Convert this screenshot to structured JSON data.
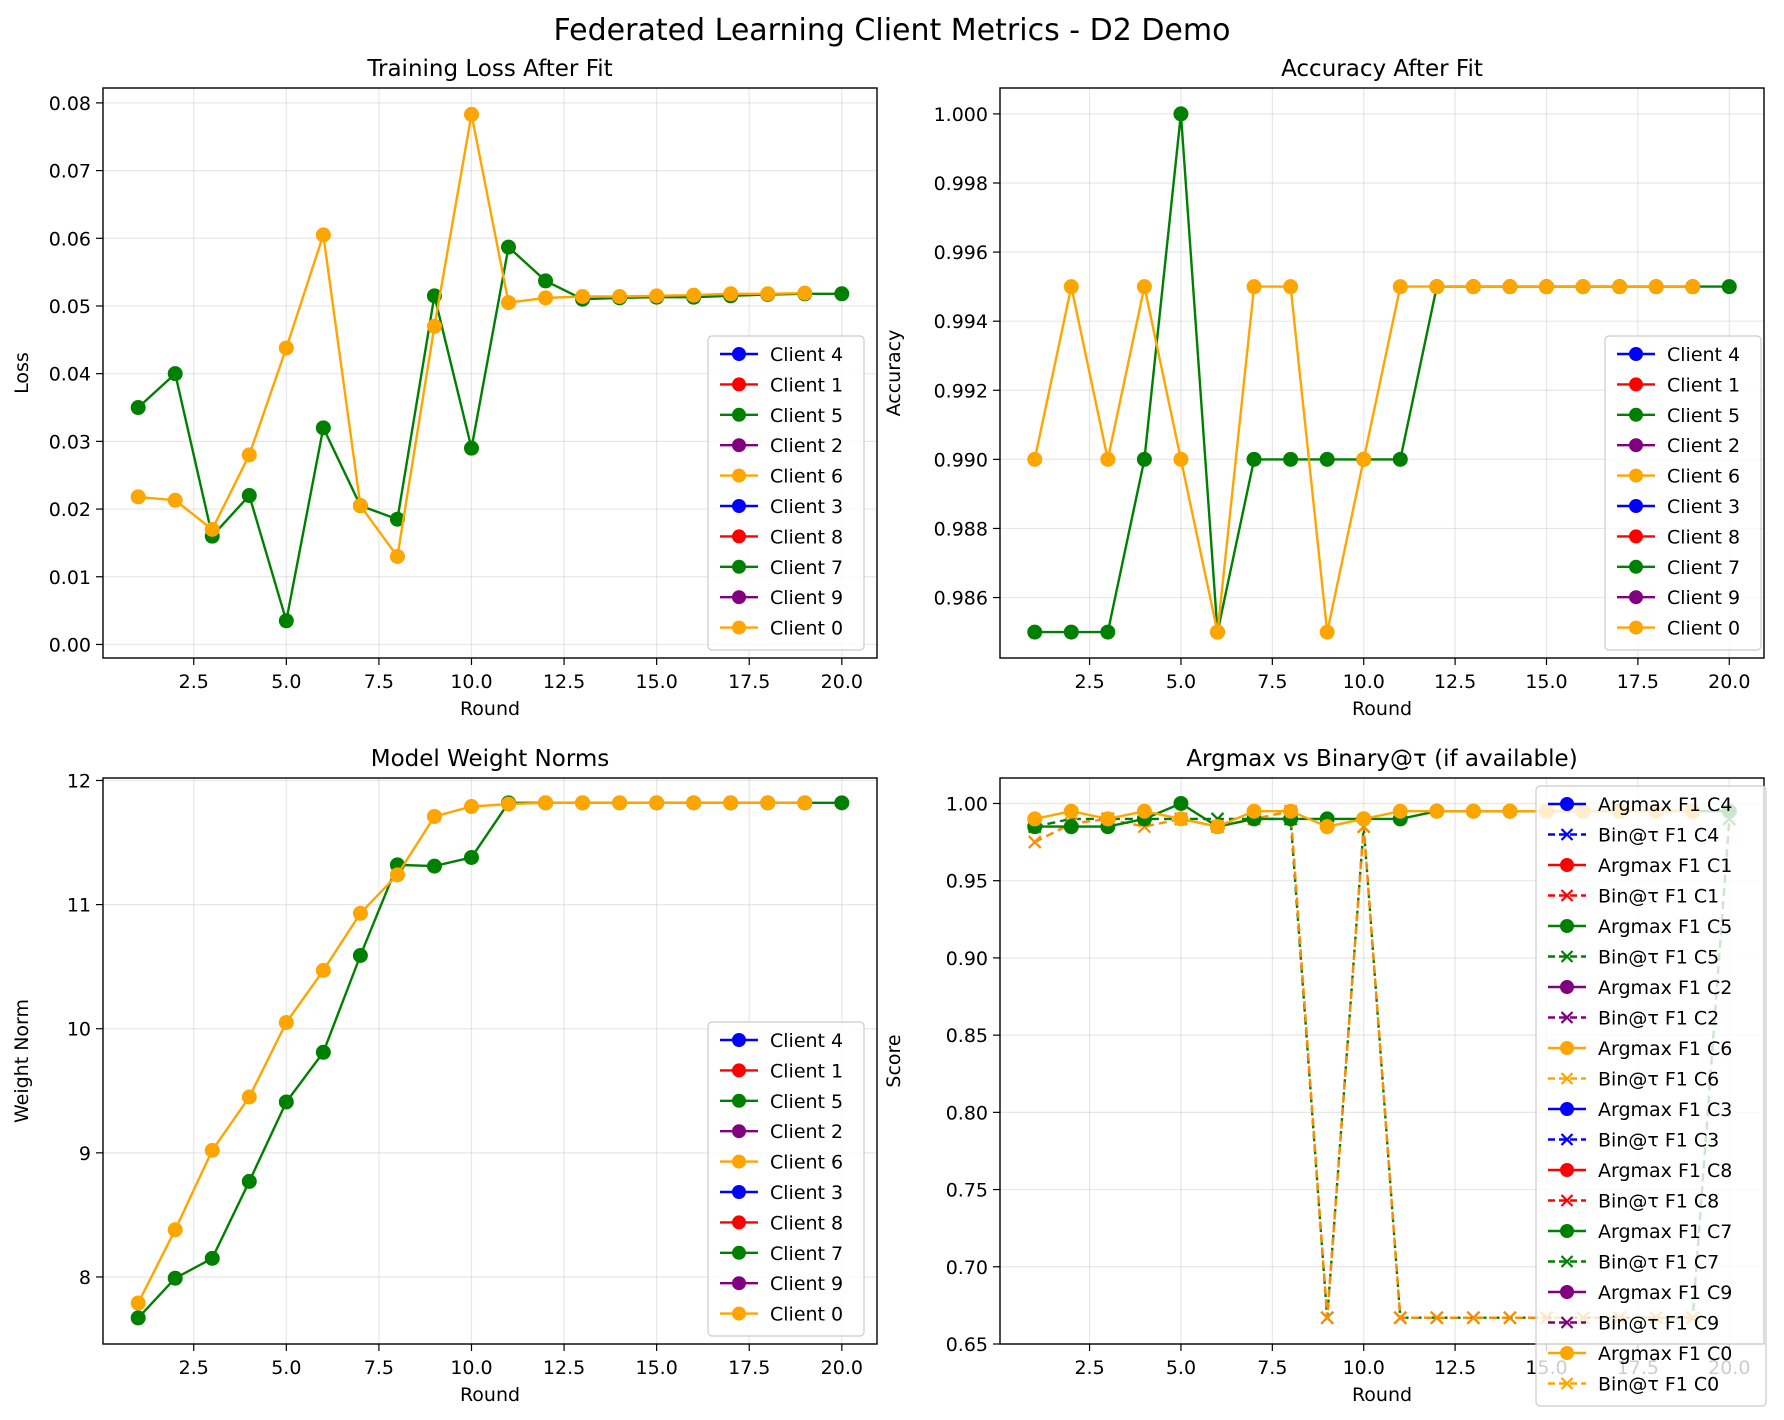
{
  "figure": {
    "title": "Federated Learning Client Metrics - D2 Demo"
  },
  "chart_data": [
    {
      "id": "loss",
      "type": "line",
      "title": "Training Loss After Fit",
      "xlabel": "Round",
      "ylabel": "Loss",
      "xlim": [
        0.05,
        20.95
      ],
      "ylim": [
        -0.002,
        0.0822
      ],
      "xticks": [
        "2.5",
        "5.0",
        "7.5",
        "10.0",
        "12.5",
        "15.0",
        "17.5",
        "20.0"
      ],
      "yticks": [
        "0.00",
        "0.01",
        "0.02",
        "0.03",
        "0.04",
        "0.05",
        "0.06",
        "0.07",
        "0.08"
      ],
      "grid": true,
      "legend_position": "center-right",
      "legend": [
        {
          "label": "Client 4",
          "color": "#0000ff",
          "marker": "o"
        },
        {
          "label": "Client 1",
          "color": "#ff0000",
          "marker": "o"
        },
        {
          "label": "Client 5",
          "color": "#008000",
          "marker": "o"
        },
        {
          "label": "Client 2",
          "color": "#800080",
          "marker": "o"
        },
        {
          "label": "Client 6",
          "color": "#ffa500",
          "marker": "o"
        },
        {
          "label": "Client 3",
          "color": "#0000ff",
          "marker": "o"
        },
        {
          "label": "Client 8",
          "color": "#ff0000",
          "marker": "o"
        },
        {
          "label": "Client 7",
          "color": "#008000",
          "marker": "o"
        },
        {
          "label": "Client 9",
          "color": "#800080",
          "marker": "o"
        },
        {
          "label": "Client 0",
          "color": "#ffa500",
          "marker": "o"
        }
      ],
      "series": [
        {
          "name": "Client 5",
          "color": "#008000",
          "marker": "o",
          "dash": "solid",
          "x": [
            1,
            2,
            3,
            4,
            5,
            6,
            7,
            8,
            9,
            10,
            11,
            12,
            13,
            14,
            15,
            16,
            17,
            18,
            19,
            20
          ],
          "y": [
            0.035,
            0.04,
            0.016,
            0.022,
            0.0035,
            0.032,
            0.0205,
            0.0185,
            0.0515,
            0.029,
            0.0587,
            0.0537,
            0.051,
            0.0512,
            0.0513,
            0.0513,
            0.0515,
            0.0517,
            0.0518,
            0.0518
          ]
        },
        {
          "name": "Client 6",
          "color": "#ffa500",
          "marker": "o",
          "dash": "solid",
          "x": [
            1,
            2,
            3,
            4,
            5,
            6,
            7,
            8,
            9,
            10,
            11,
            12,
            13,
            14,
            15,
            16,
            17,
            18,
            19
          ],
          "y": [
            0.0218,
            0.0213,
            0.017,
            0.028,
            0.0438,
            0.0605,
            0.0205,
            0.013,
            0.047,
            0.0783,
            0.0505,
            0.0512,
            0.0514,
            0.0514,
            0.0515,
            0.0516,
            0.0518,
            0.0518,
            0.0519
          ]
        }
      ]
    },
    {
      "id": "acc",
      "type": "line",
      "title": "Accuracy After Fit",
      "xlabel": "Round",
      "ylabel": "Accuracy",
      "xlim": [
        0.05,
        20.95
      ],
      "ylim": [
        0.98425,
        1.00075
      ],
      "xticks": [
        "2.5",
        "5.0",
        "7.5",
        "10.0",
        "12.5",
        "15.0",
        "17.5",
        "20.0"
      ],
      "yticks": [
        "0.986",
        "0.988",
        "0.990",
        "0.992",
        "0.994",
        "0.996",
        "0.998",
        "1.000"
      ],
      "grid": true,
      "legend_position": "center-right",
      "legend": [
        {
          "label": "Client 4",
          "color": "#0000ff",
          "marker": "o"
        },
        {
          "label": "Client 1",
          "color": "#ff0000",
          "marker": "o"
        },
        {
          "label": "Client 5",
          "color": "#008000",
          "marker": "o"
        },
        {
          "label": "Client 2",
          "color": "#800080",
          "marker": "o"
        },
        {
          "label": "Client 6",
          "color": "#ffa500",
          "marker": "o"
        },
        {
          "label": "Client 3",
          "color": "#0000ff",
          "marker": "o"
        },
        {
          "label": "Client 8",
          "color": "#ff0000",
          "marker": "o"
        },
        {
          "label": "Client 7",
          "color": "#008000",
          "marker": "o"
        },
        {
          "label": "Client 9",
          "color": "#800080",
          "marker": "o"
        },
        {
          "label": "Client 0",
          "color": "#ffa500",
          "marker": "o"
        }
      ],
      "series": [
        {
          "name": "Client 5",
          "color": "#008000",
          "marker": "o",
          "dash": "solid",
          "x": [
            1,
            2,
            3,
            4,
            5,
            6,
            7,
            8,
            9,
            10,
            11,
            12,
            13,
            14,
            15,
            16,
            17,
            18,
            19,
            20
          ],
          "y": [
            0.985,
            0.985,
            0.985,
            0.99,
            1.0,
            0.985,
            0.99,
            0.99,
            0.99,
            0.99,
            0.99,
            0.995,
            0.995,
            0.995,
            0.995,
            0.995,
            0.995,
            0.995,
            0.995,
            0.995
          ]
        },
        {
          "name": "Client 6",
          "color": "#ffa500",
          "marker": "o",
          "dash": "solid",
          "x": [
            1,
            2,
            3,
            4,
            5,
            6,
            7,
            8,
            9,
            10,
            11,
            12,
            13,
            14,
            15,
            16,
            17,
            18,
            19
          ],
          "y": [
            0.99,
            0.995,
            0.99,
            0.995,
            0.99,
            0.985,
            0.995,
            0.995,
            0.985,
            0.99,
            0.995,
            0.995,
            0.995,
            0.995,
            0.995,
            0.995,
            0.995,
            0.995,
            0.995
          ]
        }
      ]
    },
    {
      "id": "norm",
      "type": "line",
      "title": "Model Weight Norms",
      "xlabel": "Round",
      "ylabel": "Weight Norm",
      "xlim": [
        0.05,
        20.95
      ],
      "ylim": [
        7.46,
        12.02
      ],
      "xticks": [
        "2.5",
        "5.0",
        "7.5",
        "10.0",
        "12.5",
        "15.0",
        "17.5",
        "20.0"
      ],
      "yticks": [
        "8",
        "9",
        "10",
        "11",
        "12"
      ],
      "grid": true,
      "legend_position": "lower-right",
      "legend": [
        {
          "label": "Client 4",
          "color": "#0000ff",
          "marker": "o"
        },
        {
          "label": "Client 1",
          "color": "#ff0000",
          "marker": "o"
        },
        {
          "label": "Client 5",
          "color": "#008000",
          "marker": "o"
        },
        {
          "label": "Client 2",
          "color": "#800080",
          "marker": "o"
        },
        {
          "label": "Client 6",
          "color": "#ffa500",
          "marker": "o"
        },
        {
          "label": "Client 3",
          "color": "#0000ff",
          "marker": "o"
        },
        {
          "label": "Client 8",
          "color": "#ff0000",
          "marker": "o"
        },
        {
          "label": "Client 7",
          "color": "#008000",
          "marker": "o"
        },
        {
          "label": "Client 9",
          "color": "#800080",
          "marker": "o"
        },
        {
          "label": "Client 0",
          "color": "#ffa500",
          "marker": "o"
        }
      ],
      "series": [
        {
          "name": "Client 5",
          "color": "#008000",
          "marker": "o",
          "dash": "solid",
          "x": [
            1,
            2,
            3,
            4,
            5,
            6,
            7,
            8,
            9,
            10,
            11,
            12,
            13,
            14,
            15,
            16,
            17,
            18,
            19,
            20
          ],
          "y": [
            7.67,
            7.99,
            8.15,
            8.77,
            9.41,
            9.81,
            10.59,
            11.32,
            11.31,
            11.38,
            11.82,
            11.82,
            11.82,
            11.82,
            11.82,
            11.82,
            11.82,
            11.82,
            11.82,
            11.82
          ]
        },
        {
          "name": "Client 6",
          "color": "#ffa500",
          "marker": "o",
          "dash": "solid",
          "x": [
            1,
            2,
            3,
            4,
            5,
            6,
            7,
            8,
            9,
            10,
            11,
            12,
            13,
            14,
            15,
            16,
            17,
            18,
            19
          ],
          "y": [
            7.79,
            8.38,
            9.02,
            9.45,
            10.05,
            10.47,
            10.93,
            11.24,
            11.71,
            11.79,
            11.81,
            11.82,
            11.82,
            11.82,
            11.82,
            11.82,
            11.82,
            11.82,
            11.82
          ]
        }
      ]
    },
    {
      "id": "f1",
      "type": "line",
      "title": "Argmax vs Binary@τ (if available)",
      "xlabel": "Round",
      "ylabel": "Score",
      "xlim": [
        0.05,
        20.95
      ],
      "ylim": [
        0.65,
        1.0165
      ],
      "xticks": [
        "2.5",
        "5.0",
        "7.5",
        "10.0",
        "12.5",
        "15.0",
        "17.5",
        "20.0"
      ],
      "yticks": [
        "0.65",
        "0.70",
        "0.75",
        "0.80",
        "0.85",
        "0.90",
        "0.95",
        "1.00"
      ],
      "grid": true,
      "legend_position": "upper-right",
      "legend": [
        {
          "label": "Argmax F1 C4",
          "color": "#0000ff",
          "marker": "o",
          "dash": "solid"
        },
        {
          "label": "Bin@τ F1 C4",
          "color": "#0000ff",
          "marker": "x",
          "dash": "dashed"
        },
        {
          "label": "Argmax F1 C1",
          "color": "#ff0000",
          "marker": "o",
          "dash": "solid"
        },
        {
          "label": "Bin@τ F1 C1",
          "color": "#ff0000",
          "marker": "x",
          "dash": "dashed"
        },
        {
          "label": "Argmax F1 C5",
          "color": "#008000",
          "marker": "o",
          "dash": "solid"
        },
        {
          "label": "Bin@τ F1 C5",
          "color": "#008000",
          "marker": "x",
          "dash": "dashed"
        },
        {
          "label": "Argmax F1 C2",
          "color": "#800080",
          "marker": "o",
          "dash": "solid"
        },
        {
          "label": "Bin@τ F1 C2",
          "color": "#800080",
          "marker": "x",
          "dash": "dashed"
        },
        {
          "label": "Argmax F1 C6",
          "color": "#ffa500",
          "marker": "o",
          "dash": "solid"
        },
        {
          "label": "Bin@τ F1 C6",
          "color": "#ffa500",
          "marker": "x",
          "dash": "dashed"
        },
        {
          "label": "Argmax F1 C3",
          "color": "#0000ff",
          "marker": "o",
          "dash": "solid"
        },
        {
          "label": "Bin@τ F1 C3",
          "color": "#0000ff",
          "marker": "x",
          "dash": "dashed"
        },
        {
          "label": "Argmax F1 C8",
          "color": "#ff0000",
          "marker": "o",
          "dash": "solid"
        },
        {
          "label": "Bin@τ F1 C8",
          "color": "#ff0000",
          "marker": "x",
          "dash": "dashed"
        },
        {
          "label": "Argmax F1 C7",
          "color": "#008000",
          "marker": "o",
          "dash": "solid"
        },
        {
          "label": "Bin@τ F1 C7",
          "color": "#008000",
          "marker": "x",
          "dash": "dashed"
        },
        {
          "label": "Argmax F1 C9",
          "color": "#800080",
          "marker": "o",
          "dash": "solid"
        },
        {
          "label": "Bin@τ F1 C9",
          "color": "#800080",
          "marker": "x",
          "dash": "dashed"
        },
        {
          "label": "Argmax F1 C0",
          "color": "#ffa500",
          "marker": "o",
          "dash": "solid"
        },
        {
          "label": "Bin@τ F1 C0",
          "color": "#ffa500",
          "marker": "x",
          "dash": "dashed"
        }
      ],
      "series": [
        {
          "name": "Bin@τ F1 C5",
          "color": "#008000",
          "marker": "x",
          "dash": "dashed",
          "x": [
            1,
            2,
            3,
            4,
            5,
            6,
            7,
            8,
            9,
            10,
            11,
            12,
            13,
            14,
            15,
            16,
            17,
            18,
            19,
            20
          ],
          "y": [
            0.985,
            0.99,
            0.99,
            0.99,
            0.99,
            0.99,
            0.99,
            0.99,
            0.667,
            0.985,
            0.667,
            0.667,
            0.667,
            0.667,
            0.667,
            0.667,
            0.667,
            0.667,
            0.667,
            0.99
          ]
        },
        {
          "name": "Bin@τ F1 C6",
          "color": "#ff8c00",
          "marker": "x",
          "dash": "dashed",
          "x": [
            1,
            2,
            3,
            4,
            5,
            6,
            7,
            8,
            9,
            10,
            11,
            12,
            13,
            14,
            15,
            16,
            17,
            18,
            19
          ],
          "y": [
            0.975,
            0.987,
            0.99,
            0.985,
            0.99,
            0.985,
            0.99,
            0.995,
            0.667,
            0.985,
            0.667,
            0.667,
            0.667,
            0.667,
            0.667,
            0.667,
            0.667,
            0.667,
            0.667
          ]
        },
        {
          "name": "Argmax F1 C5",
          "color": "#008000",
          "marker": "o",
          "dash": "solid",
          "x": [
            1,
            2,
            3,
            4,
            5,
            6,
            7,
            8,
            9,
            10,
            11,
            12,
            13,
            14,
            15,
            16,
            17,
            18,
            19,
            20
          ],
          "y": [
            0.985,
            0.985,
            0.985,
            0.99,
            1.0,
            0.985,
            0.99,
            0.99,
            0.99,
            0.99,
            0.99,
            0.995,
            0.995,
            0.995,
            0.995,
            0.995,
            0.995,
            0.995,
            0.995,
            0.995
          ]
        },
        {
          "name": "Argmax F1 C6",
          "color": "#ffa500",
          "marker": "o",
          "dash": "solid",
          "x": [
            1,
            2,
            3,
            4,
            5,
            6,
            7,
            8,
            9,
            10,
            11,
            12,
            13,
            14,
            15,
            16,
            17,
            18,
            19
          ],
          "y": [
            0.99,
            0.995,
            0.99,
            0.995,
            0.99,
            0.985,
            0.995,
            0.995,
            0.985,
            0.99,
            0.995,
            0.995,
            0.995,
            0.995,
            0.995,
            0.995,
            0.995,
            0.995,
            0.995
          ]
        }
      ]
    }
  ]
}
